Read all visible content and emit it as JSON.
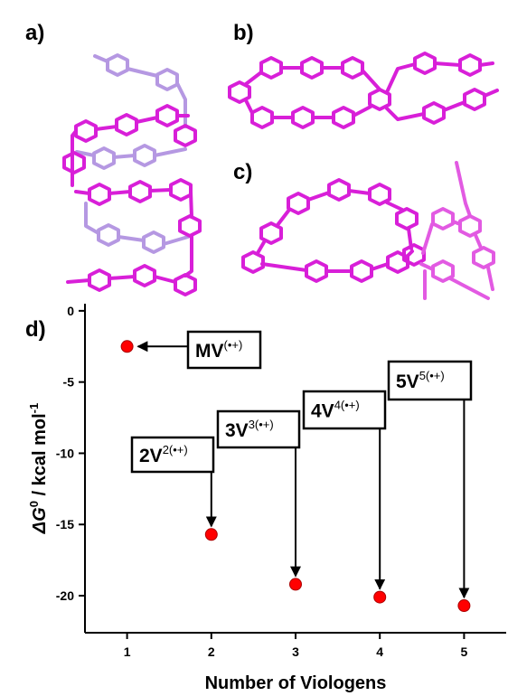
{
  "panel_labels": [
    "a)",
    "b)",
    "c)"
  ],
  "chart_data": {
    "type": "scatter",
    "panel_label": "d)",
    "x_label": "Number of Viologens",
    "y_label": {
      "symbol": "ΔG",
      "symbol_sup": "0",
      "unit": " / kcal mol",
      "unit_sup": "-1"
    },
    "x": [
      1,
      2,
      3,
      4,
      5
    ],
    "series": [
      {
        "color": "#ff0000",
        "values": [
          -2.5,
          -15.7,
          -19.2,
          -20.1,
          -20.7
        ]
      }
    ],
    "xlim": [
      0.5,
      5.5
    ],
    "xticks": [
      1,
      2,
      3,
      4,
      5
    ],
    "ylim": [
      -22.6,
      0.5
    ],
    "yticks": [
      0,
      -5,
      -10,
      -15,
      -20
    ],
    "annotations": [
      {
        "text": "MV",
        "sup": "(•+)"
      },
      {
        "text": "2V",
        "sup": "2(•+)"
      },
      {
        "text": "3V",
        "sup": "3(•+)"
      },
      {
        "text": "4V",
        "sup": "4(•+)"
      },
      {
        "text": "5V",
        "sup": "5(•+)"
      }
    ]
  }
}
